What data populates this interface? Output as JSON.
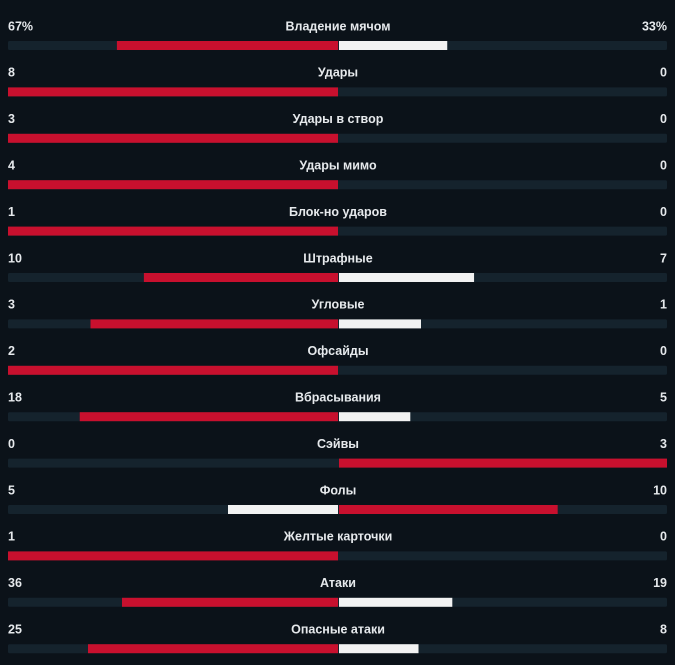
{
  "stats": [
    {
      "label": "Владение мячом",
      "home": "67%",
      "away": "33%"
    },
    {
      "label": "Удары",
      "home": 8,
      "away": 0
    },
    {
      "label": "Удары в створ",
      "home": 3,
      "away": 0
    },
    {
      "label": "Удары мимо",
      "home": 4,
      "away": 0
    },
    {
      "label": "Блок-но ударов",
      "home": 1,
      "away": 0
    },
    {
      "label": "Штрафные",
      "home": 10,
      "away": 7
    },
    {
      "label": "Угловые",
      "home": 3,
      "away": 1
    },
    {
      "label": "Офсайды",
      "home": 2,
      "away": 0
    },
    {
      "label": "Вбрасывания",
      "home": 18,
      "away": 5
    },
    {
      "label": "Сэйвы",
      "home": 0,
      "away": 3
    },
    {
      "label": "Фолы",
      "home": 5,
      "away": 10
    },
    {
      "label": "Желтые карточки",
      "home": 1,
      "away": 0
    },
    {
      "label": "Атаки",
      "home": 36,
      "away": 19
    },
    {
      "label": "Опасные атаки",
      "home": 25,
      "away": 8
    }
  ]
}
